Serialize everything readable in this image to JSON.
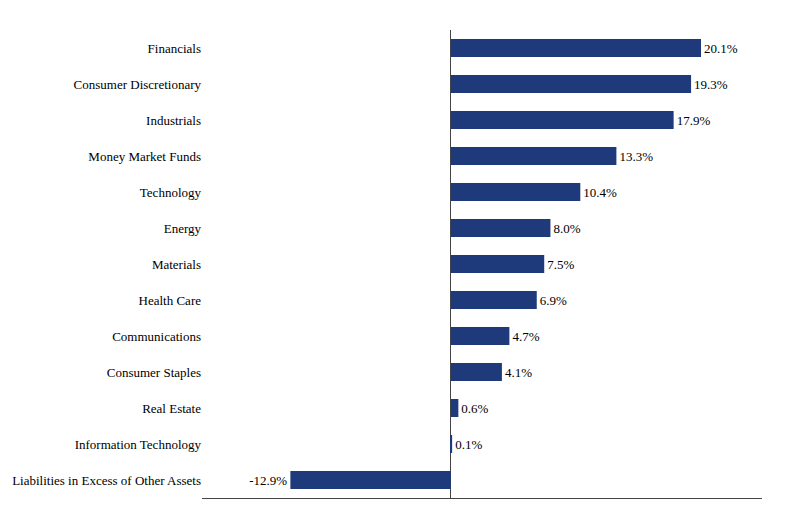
{
  "chart_data": {
    "type": "bar",
    "orientation": "horizontal",
    "categories": [
      "Financials",
      "Consumer Discretionary",
      "Industrials",
      "Money Market Funds",
      "Technology",
      "Energy",
      "Materials",
      "Health Care",
      "Communications",
      "Consumer Staples",
      "Real Estate",
      "Information Technology",
      "Liabilities in Excess of Other Assets"
    ],
    "values": [
      20.1,
      19.3,
      17.9,
      13.3,
      10.4,
      8.0,
      7.5,
      6.9,
      4.7,
      4.1,
      0.6,
      0.1,
      -12.9
    ],
    "value_labels": [
      "20.1%",
      "19.3%",
      "17.9%",
      "13.3%",
      "10.4%",
      "8.0%",
      "7.5%",
      "6.9%",
      "4.7%",
      "4.1%",
      "0.6%",
      "0.1%",
      "-12.9%"
    ],
    "color": "#1f3a7a",
    "xlim": [
      -20,
      25
    ],
    "grid": false,
    "data_labels": true,
    "tick_labels": "y"
  }
}
